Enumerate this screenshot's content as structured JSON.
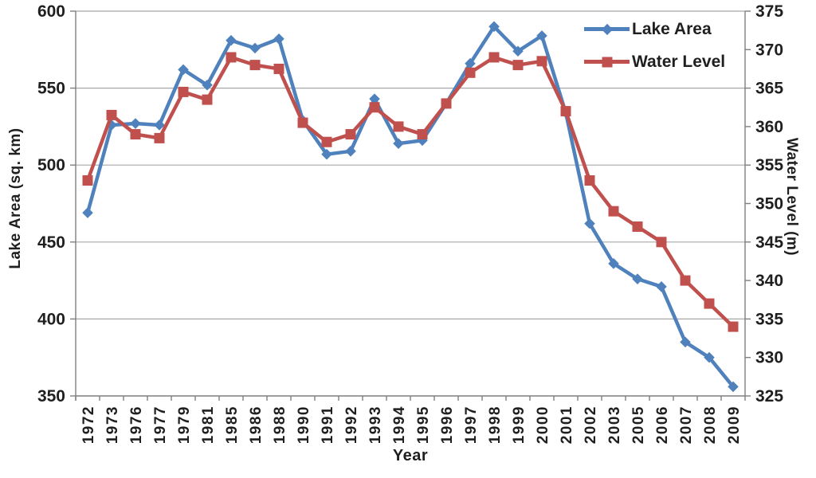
{
  "chart_data": {
    "type": "line",
    "title": "",
    "xlabel": "Year",
    "ylabel_left": "Lake Area (sq. km)",
    "ylabel_right": "Water Level (m)",
    "categories": [
      "1972",
      "1973",
      "1976",
      "1977",
      "1979",
      "1981",
      "1985",
      "1986",
      "1988",
      "1990",
      "1991",
      "1992",
      "1993",
      "1994",
      "1995",
      "1996",
      "1997",
      "1998",
      "1999",
      "2000",
      "2001",
      "2002",
      "2003",
      "2005",
      "2006",
      "2007",
      "2008",
      "2009"
    ],
    "series": [
      {
        "name": "Lake Area",
        "axis": "left",
        "marker": "diamond",
        "color": "#4F81BD",
        "values": [
          469,
          526,
          527,
          526,
          562,
          552,
          581,
          576,
          582,
          529,
          507,
          509,
          543,
          514,
          516,
          540,
          566,
          590,
          574,
          584,
          534,
          462,
          436,
          426,
          421,
          385,
          375,
          356
        ]
      },
      {
        "name": "Water Level",
        "axis": "right",
        "marker": "square",
        "color": "#C0504D",
        "values": [
          353,
          361.5,
          359,
          358.5,
          364.5,
          363.5,
          369,
          368,
          367.5,
          360.5,
          358,
          359,
          362.5,
          360,
          359,
          363,
          367,
          369,
          368,
          368.5,
          362,
          353,
          349,
          347,
          345,
          340,
          337,
          334
        ]
      }
    ],
    "left_axis": {
      "min": 350,
      "max": 600,
      "tick_step": 50,
      "ticks": [
        600,
        550,
        500,
        450,
        400,
        350
      ]
    },
    "right_axis": {
      "min": 325,
      "max": 375,
      "tick_step": 5,
      "ticks": [
        375,
        370,
        365,
        360,
        355,
        350,
        345,
        340,
        335,
        330,
        325
      ]
    },
    "legend_position": "top-right",
    "grid": "horizontal",
    "colors": {
      "gridline": "#A8A8A8",
      "axis_line": "#7F7F7F",
      "text": "#1F1F1F",
      "background": "#FFFFFF"
    }
  }
}
